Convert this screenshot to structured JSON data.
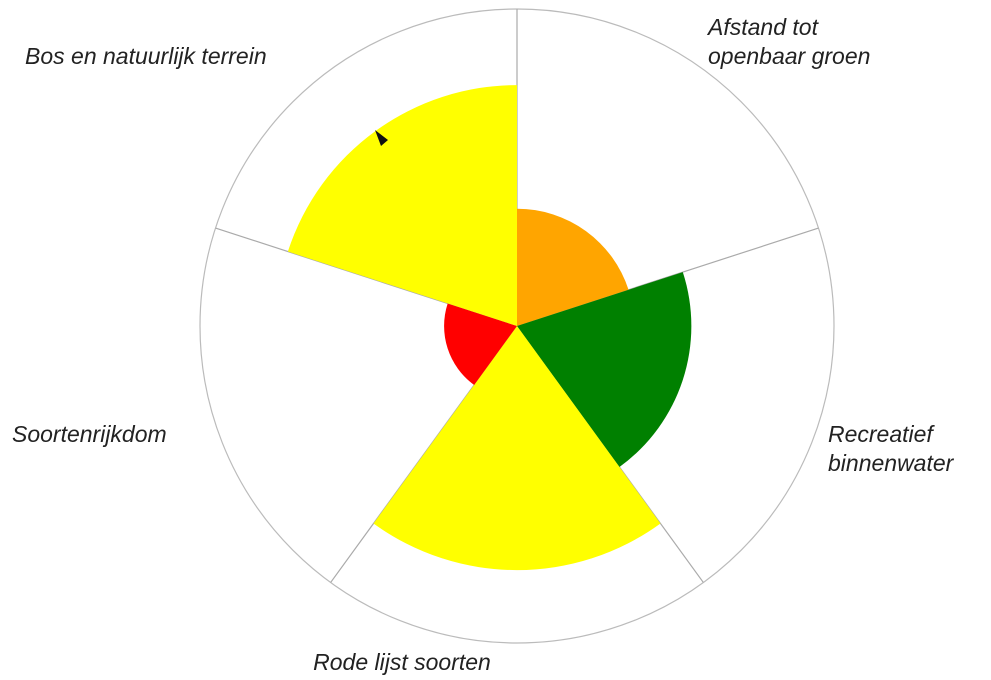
{
  "chart_data": {
    "type": "polar-area",
    "categories": [
      [
        "Afstand tot",
        "openbaar groen"
      ],
      [
        "Recreatief",
        "binnenwater"
      ],
      [
        "Rode lijst soorten"
      ],
      [
        "Soortenrijkdom"
      ],
      [
        "Bos en natuurlijk terrein"
      ]
    ],
    "values": [
      37,
      55,
      77,
      23,
      76
    ],
    "colors": [
      "#ffa500",
      "#008000",
      "#ffff00",
      "#ff0000",
      "#ffff00"
    ],
    "rlim": [
      0,
      100
    ]
  }
}
